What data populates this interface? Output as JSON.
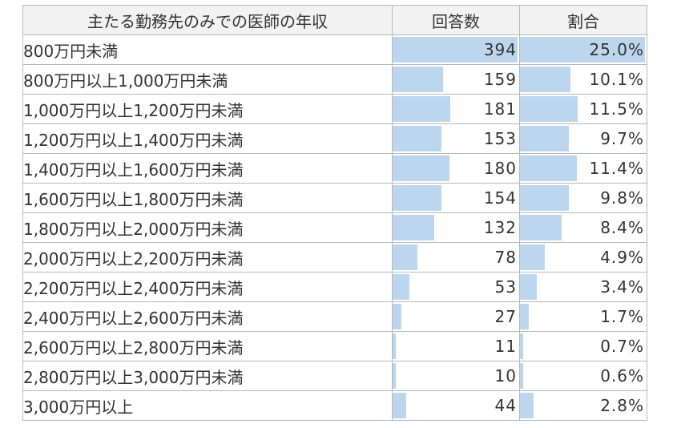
{
  "table": {
    "headers": [
      "主たる勤務先のみでの医師の年収",
      "回答数",
      "割合"
    ],
    "bar_color": "#bcd6ee",
    "max_count": 394,
    "max_ratio": 25.0,
    "rows": [
      {
        "label": "800万円未満",
        "count": 394,
        "ratio": "25.0%",
        "ratio_value": 25.0
      },
      {
        "label": "800万円以上1,000万円未満",
        "count": 159,
        "ratio": "10.1%",
        "ratio_value": 10.1
      },
      {
        "label": "1,000万円以上1,200万円未満",
        "count": 181,
        "ratio": "11.5%",
        "ratio_value": 11.5
      },
      {
        "label": "1,200万円以上1,400万円未満",
        "count": 153,
        "ratio": "9.7%",
        "ratio_value": 9.7
      },
      {
        "label": "1,400万円以上1,600万円未満",
        "count": 180,
        "ratio": "11.4%",
        "ratio_value": 11.4
      },
      {
        "label": "1,600万円以上1,800万円未満",
        "count": 154,
        "ratio": "9.8%",
        "ratio_value": 9.8
      },
      {
        "label": "1,800万円以上2,000万円未満",
        "count": 132,
        "ratio": "8.4%",
        "ratio_value": 8.4
      },
      {
        "label": "2,000万円以上2,200万円未満",
        "count": 78,
        "ratio": "4.9%",
        "ratio_value": 4.9
      },
      {
        "label": "2,200万円以上2,400万円未満",
        "count": 53,
        "ratio": "3.4%",
        "ratio_value": 3.4
      },
      {
        "label": "2,400万円以上2,600万円未満",
        "count": 27,
        "ratio": "1.7%",
        "ratio_value": 1.7
      },
      {
        "label": "2,600万円以上2,800万円未満",
        "count": 11,
        "ratio": "0.7%",
        "ratio_value": 0.7
      },
      {
        "label": "2,800万円以上3,000万円未満",
        "count": 10,
        "ratio": "0.6%",
        "ratio_value": 0.6
      },
      {
        "label": "3,000万円以上",
        "count": 44,
        "ratio": "2.8%",
        "ratio_value": 2.8
      }
    ]
  }
}
